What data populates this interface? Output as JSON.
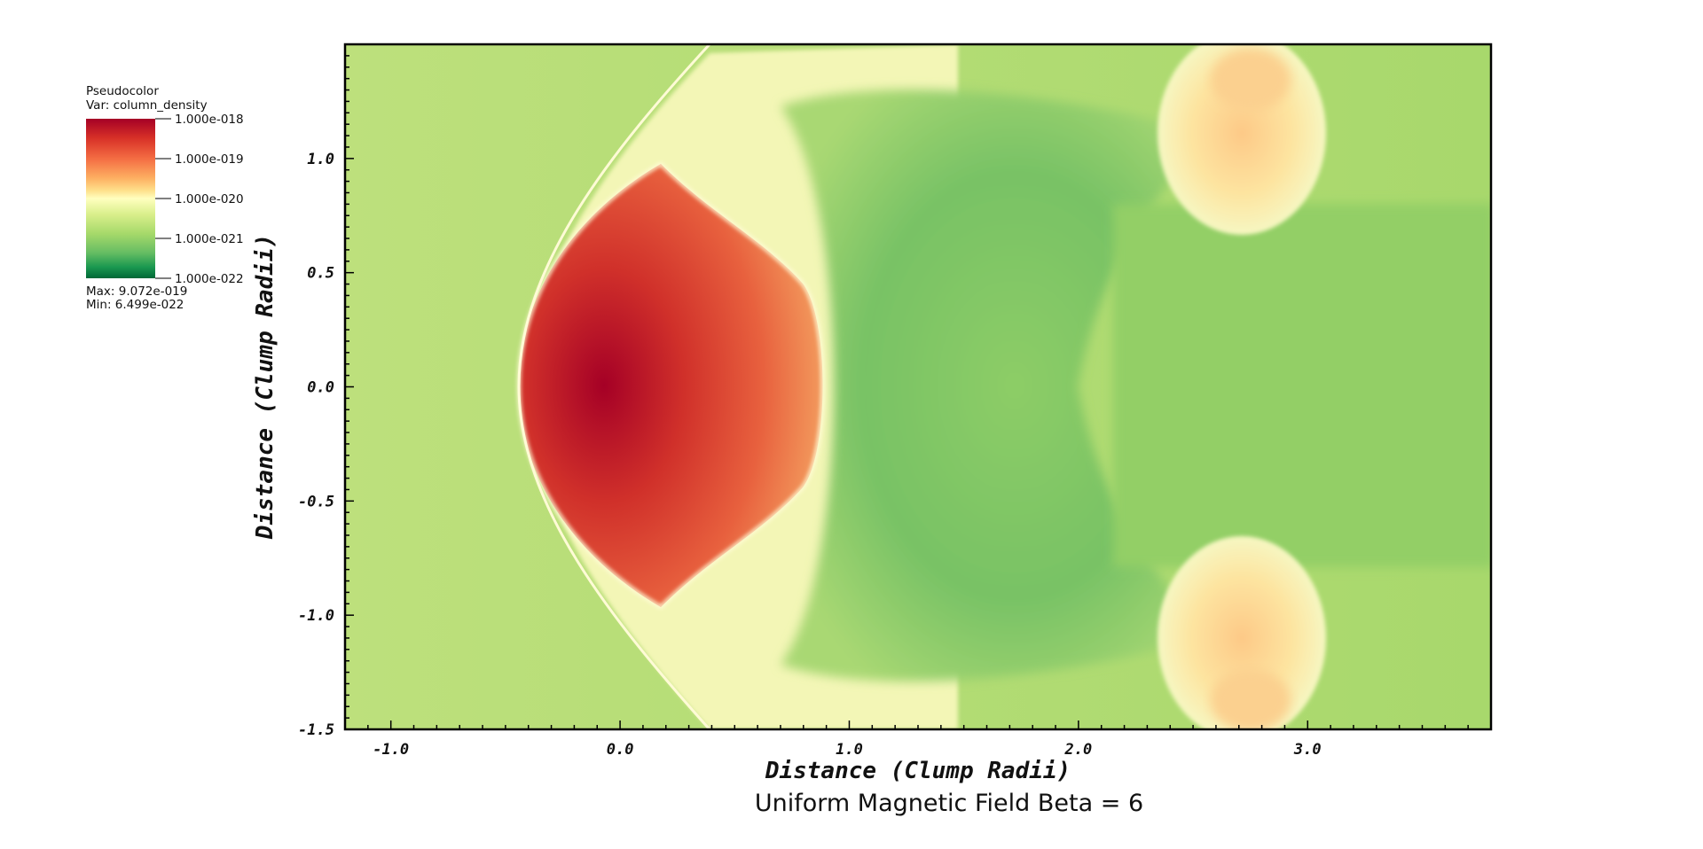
{
  "chart_data": {
    "type": "heatmap",
    "title": "Uniform Magnetic Field Beta = 6",
    "xlabel": "Distance (Clump Radii)",
    "ylabel": "Distance (Clump Radii)",
    "xlim": [
      -1.2,
      3.8
    ],
    "ylim": [
      -1.5,
      1.5
    ],
    "x_ticks": [
      -1.0,
      0.0,
      1.0,
      2.0,
      3.0
    ],
    "x_tick_labels": [
      "-1.0",
      "0.0",
      "1.0",
      "2.0",
      "3.0"
    ],
    "y_ticks": [
      -1.5,
      -1.0,
      -0.5,
      0.0,
      0.5,
      1.0
    ],
    "y_tick_labels": [
      "-1.5",
      "-1.0",
      "-0.5",
      "0.0",
      "0.5",
      "1.0"
    ],
    "legend": {
      "type_label": "Pseudocolor",
      "var_label": "Var: column_density",
      "ticks": [
        1e-18,
        1e-19,
        1e-20,
        1e-21,
        1e-22
      ],
      "tick_labels": [
        "1.000e-018",
        "1.000e-019",
        "1.000e-020",
        "1.000e-021",
        "1.000e-022"
      ],
      "max_label": "Max:  9.072e-019",
      "min_label": "Min:  6.499e-022",
      "max_value": 9.072e-19,
      "min_value": 6.499e-22,
      "scale": "log",
      "colormap": [
        "#a50026",
        "#d73027",
        "#f46d43",
        "#fdae61",
        "#fee08b",
        "#ffffbf",
        "#d9ef8b",
        "#a6d96a",
        "#66bd63",
        "#1a9850",
        "#006837"
      ]
    },
    "field_description_colors": {
      "background": "#b7df78",
      "dense_core": "#a50026",
      "shock_edge": "#fffbd6",
      "wake": "#7cc466"
    }
  }
}
